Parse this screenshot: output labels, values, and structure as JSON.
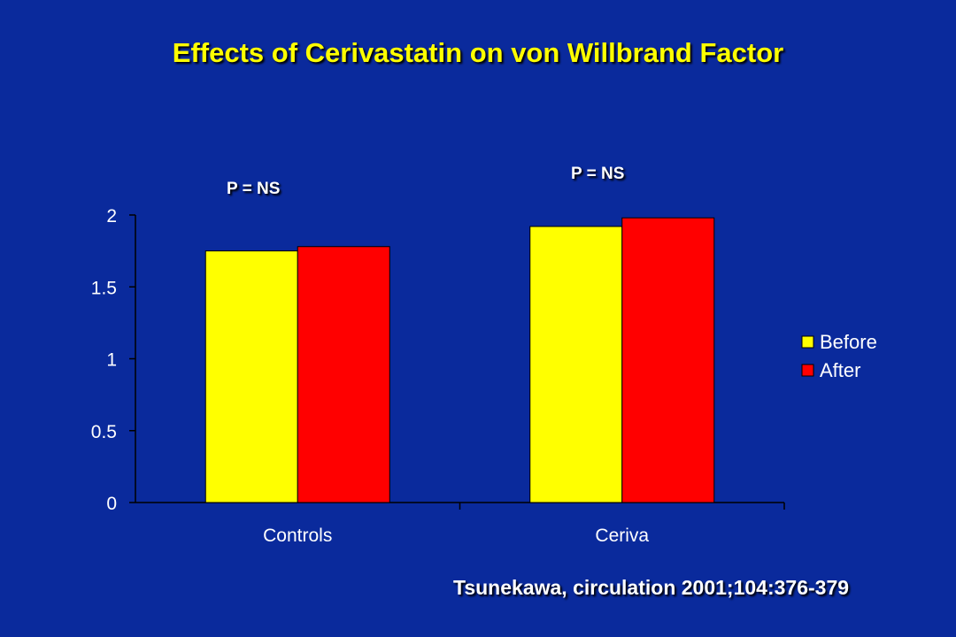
{
  "title": "Effects of Cerivastatin on von Willbrand Factor",
  "annotations": [
    "P = NS",
    "P = NS"
  ],
  "citation": "Tsunekawa, circulation 2001;104:376-379",
  "colors": {
    "background": "#0a2a9c",
    "before": "#ffff00",
    "after": "#ff0000",
    "title": "#ffff00",
    "text": "#ffffff"
  },
  "chart_data": {
    "type": "bar",
    "categories": [
      "Controls",
      "Ceriva"
    ],
    "series": [
      {
        "name": "Before",
        "values": [
          1.75,
          1.92
        ]
      },
      {
        "name": "After",
        "values": [
          1.78,
          1.98
        ]
      }
    ],
    "ylim": [
      0,
      2
    ],
    "yticks": [
      "0",
      "0.5",
      "1",
      "1.5",
      "2"
    ],
    "ytick_values": [
      0,
      0.5,
      1,
      1.5,
      2
    ],
    "grid": false,
    "legend": "right"
  }
}
